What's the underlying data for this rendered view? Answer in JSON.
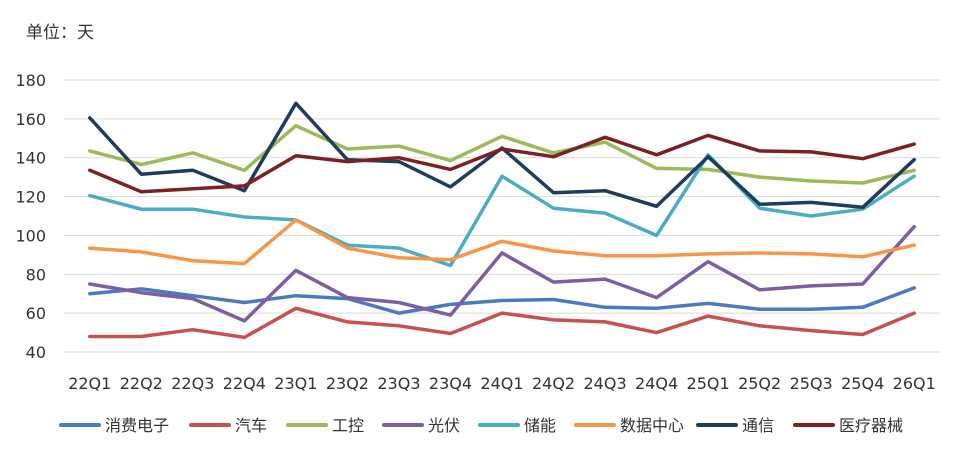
{
  "unit_label": "单位：天",
  "chart_data": {
    "type": "line",
    "title": "",
    "xlabel": "",
    "ylabel": "",
    "ylim": [
      40,
      180
    ],
    "yticks": [
      40,
      60,
      80,
      100,
      120,
      140,
      160,
      180
    ],
    "grid": true,
    "legend_position": "bottom",
    "categories": [
      "22Q1",
      "22Q2",
      "22Q3",
      "22Q4",
      "23Q1",
      "23Q2",
      "23Q3",
      "23Q4",
      "24Q1",
      "24Q2",
      "24Q3",
      "24Q4",
      "25Q1",
      "25Q2",
      "25Q3",
      "25Q4",
      "26Q1"
    ],
    "series": [
      {
        "name": "消费电子",
        "color": "#4a7bbf",
        "values": [
          70,
          72.5,
          69,
          65.5,
          69,
          67.5,
          60,
          64.5,
          66.5,
          67,
          63,
          62.5,
          65,
          62,
          62,
          63,
          73
        ]
      },
      {
        "name": "汽车",
        "color": "#c8504f",
        "values": [
          48,
          48,
          51.5,
          47.5,
          62.5,
          55.5,
          53.5,
          49.5,
          60,
          56.5,
          55.5,
          50,
          58.5,
          53.5,
          51,
          49,
          60
        ]
      },
      {
        "name": "工控",
        "color": "#9bbb59",
        "values": [
          143.5,
          136.5,
          142.5,
          133.5,
          156.5,
          144.5,
          146,
          138.5,
          151,
          142.5,
          148,
          134.5,
          134,
          130,
          128,
          127,
          133.5
        ]
      },
      {
        "name": "光伏",
        "color": "#7d5ea3",
        "values": [
          75,
          70.5,
          67.5,
          56,
          82,
          68,
          65.5,
          59,
          91,
          76,
          77.5,
          68,
          86.5,
          72,
          74,
          75,
          104.5
        ]
      },
      {
        "name": "储能",
        "color": "#4bacc6",
        "values": [
          120.5,
          113.5,
          113.5,
          109.5,
          108,
          95,
          93.5,
          84.5,
          130.5,
          114,
          111.5,
          100,
          141.5,
          114,
          110,
          113.5,
          130.5
        ]
      },
      {
        "name": "数据中心",
        "color": "#f79646",
        "values": [
          93.5,
          91.5,
          87,
          85.5,
          108,
          93.5,
          88.5,
          87.5,
          97,
          92,
          89.5,
          89.5,
          90.5,
          91,
          90.5,
          89,
          95
        ]
      },
      {
        "name": "通信",
        "color": "#1f3c5e",
        "values": [
          160.5,
          131.5,
          133.5,
          123,
          168,
          139,
          138,
          125,
          145,
          122,
          123,
          115,
          140.5,
          116,
          117,
          114.5,
          139
        ]
      },
      {
        "name": "医疗器械",
        "color": "#7b2121",
        "values": [
          133.5,
          122.5,
          124,
          125.5,
          141,
          138,
          140,
          134,
          144.5,
          140.5,
          150.5,
          141.5,
          151.5,
          143.5,
          143,
          139.5,
          147
        ]
      }
    ]
  }
}
